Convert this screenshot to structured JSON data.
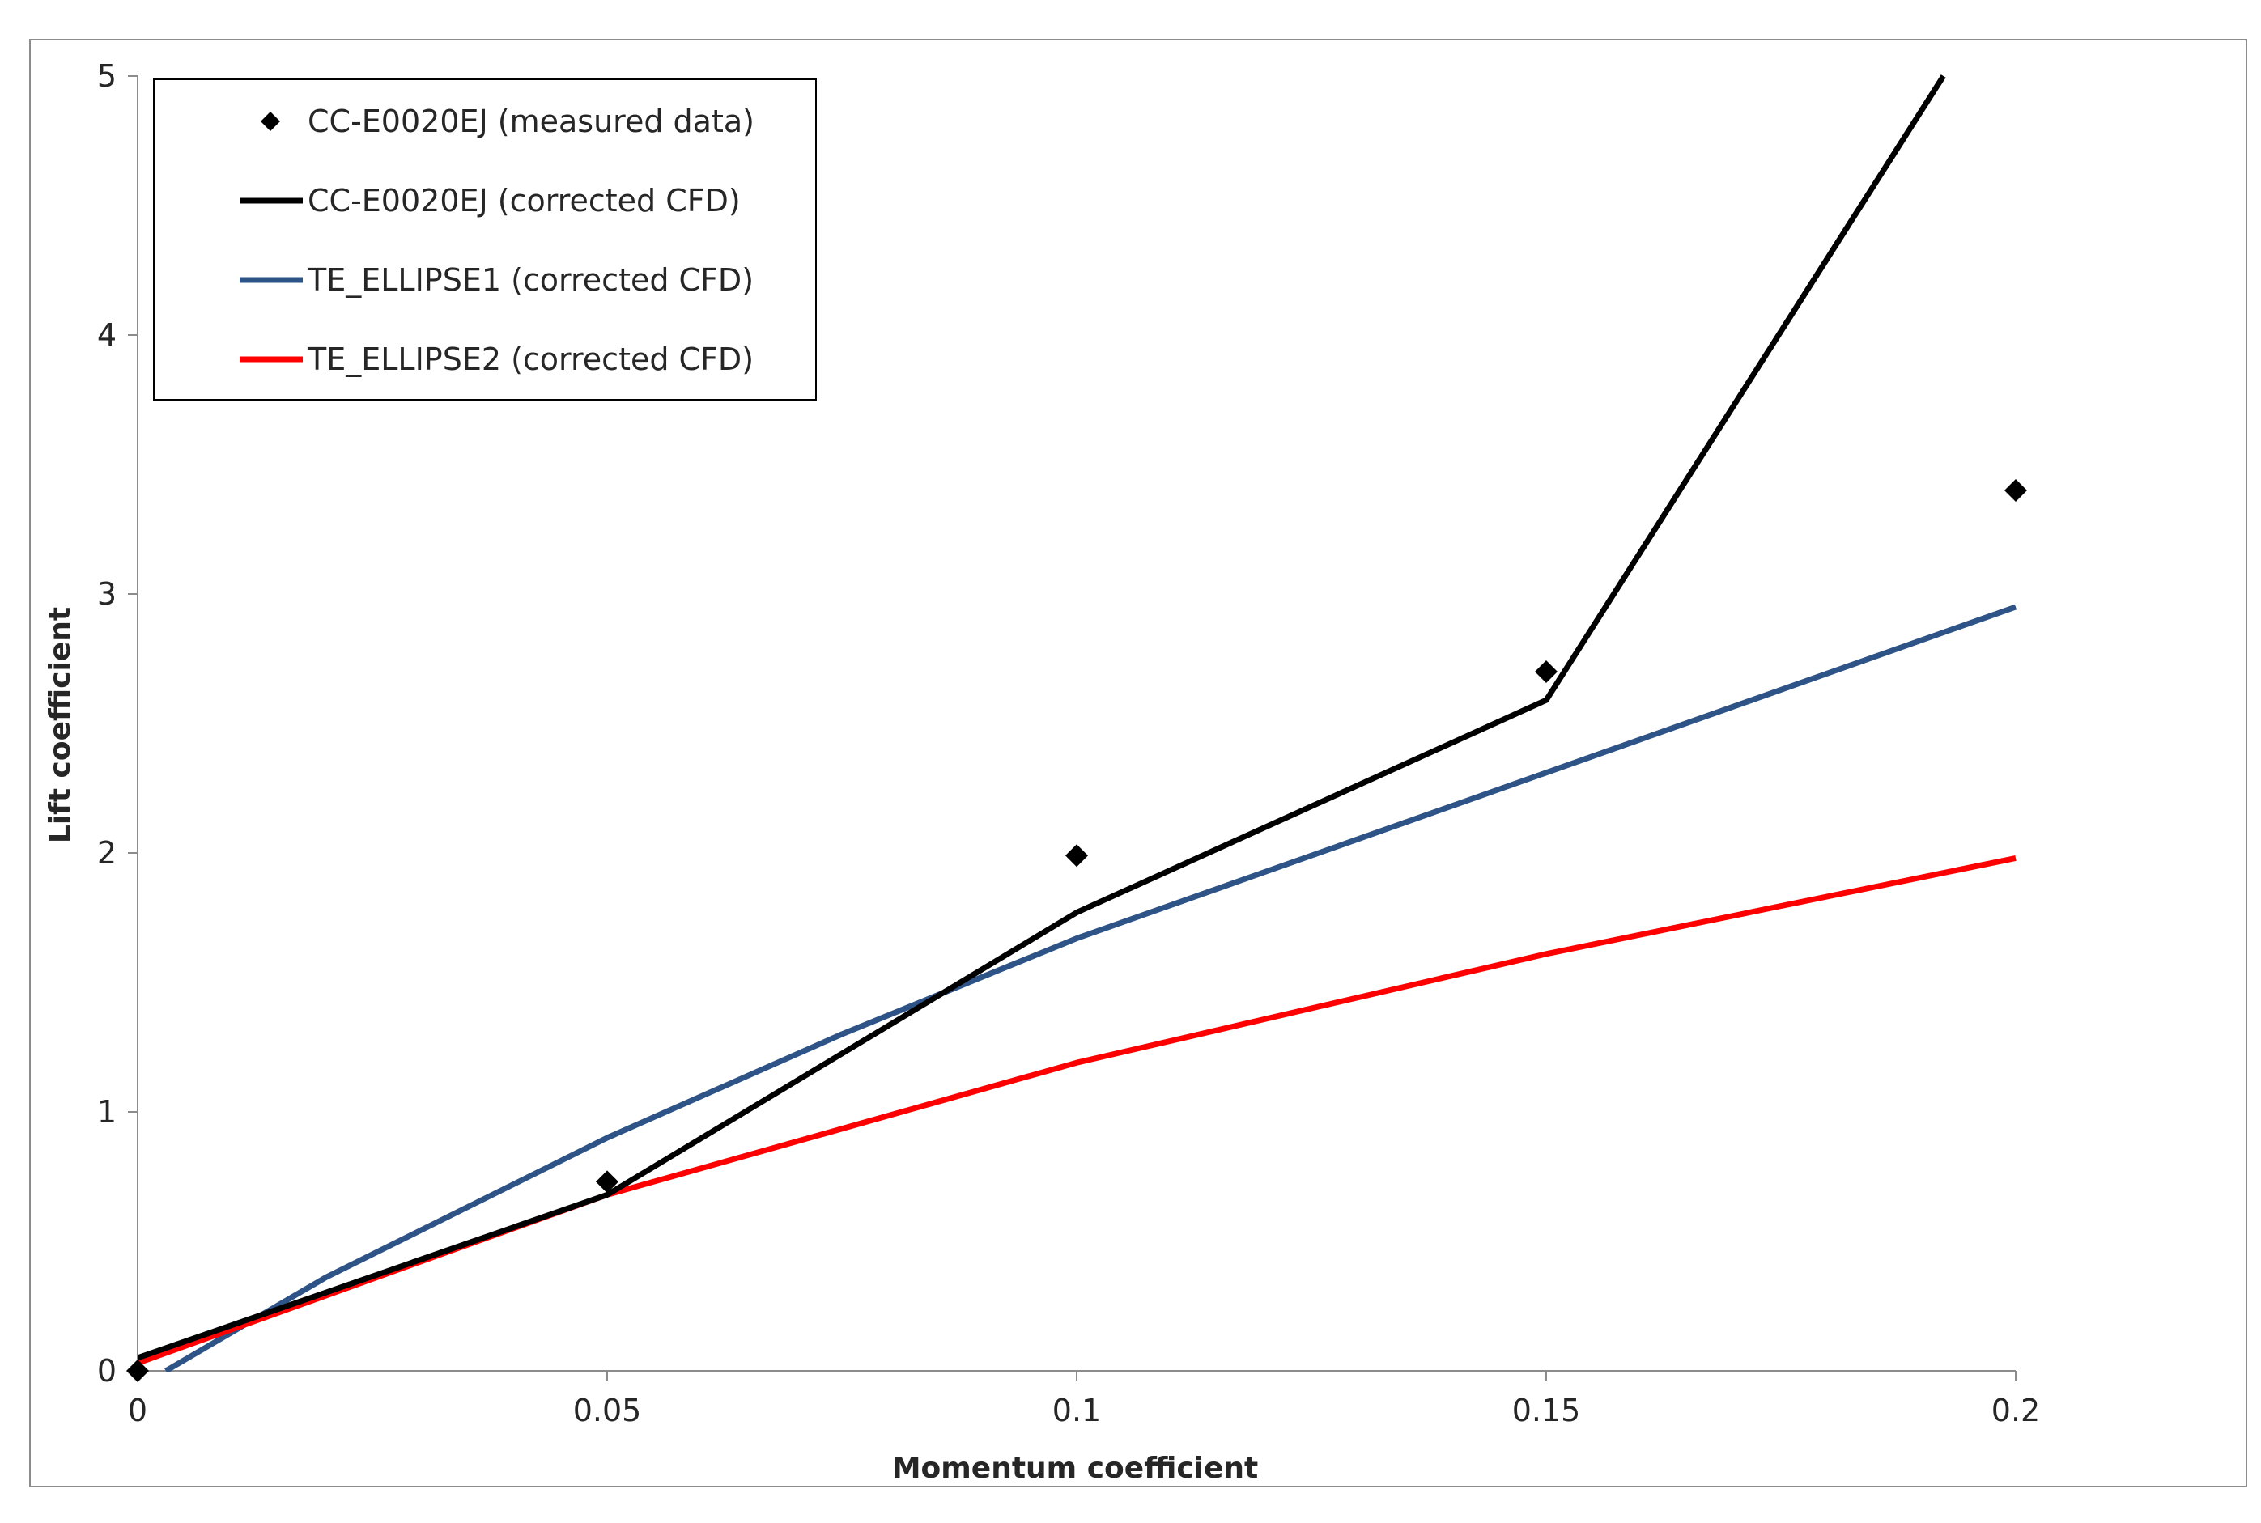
{
  "chart_data": {
    "type": "line",
    "title": "",
    "xlabel": "Momentum coefficient",
    "ylabel": "Lift coefficient",
    "xlim": [
      0,
      0.2
    ],
    "ylim": [
      0,
      5
    ],
    "x_ticks": [
      0,
      0.05,
      0.1,
      0.15,
      0.2
    ],
    "x_tick_labels": [
      "0",
      "0.05",
      "0.1",
      "0.15",
      "0.2"
    ],
    "y_ticks": [
      0,
      1,
      2,
      3,
      4,
      5
    ],
    "y_tick_labels": [
      "0",
      "1",
      "2",
      "3",
      "4",
      "5"
    ],
    "grid": false,
    "legend_position": "top-left",
    "series": [
      {
        "name": "CC-E0020EJ (measured data)",
        "kind": "scatter",
        "marker": "diamond",
        "color": "#000000",
        "x": [
          0,
          0.05,
          0.1,
          0.15,
          0.2
        ],
        "y": [
          0.0,
          0.73,
          1.99,
          2.7,
          3.4
        ]
      },
      {
        "name": "CC-E0020EJ (corrected CFD)",
        "kind": "line",
        "color": "#000000",
        "x": [
          0,
          0.05,
          0.1,
          0.15,
          0.1923
        ],
        "y": [
          0.05,
          0.68,
          1.77,
          2.59,
          5.0
        ]
      },
      {
        "name": "TE_ELLIPSE1 (corrected CFD)",
        "kind": "line",
        "color": "#2e5387",
        "x": [
          0.003,
          0.02,
          0.05,
          0.075,
          0.1,
          0.15,
          0.2
        ],
        "y": [
          0.0,
          0.36,
          0.9,
          1.3,
          1.67,
          2.31,
          2.95
        ]
      },
      {
        "name": "TE_ELLIPSE2 (corrected CFD)",
        "kind": "line",
        "color": "#ff0000",
        "x": [
          0,
          0.05,
          0.1,
          0.15,
          0.2
        ],
        "y": [
          0.03,
          0.68,
          1.19,
          1.61,
          1.98
        ]
      }
    ]
  }
}
